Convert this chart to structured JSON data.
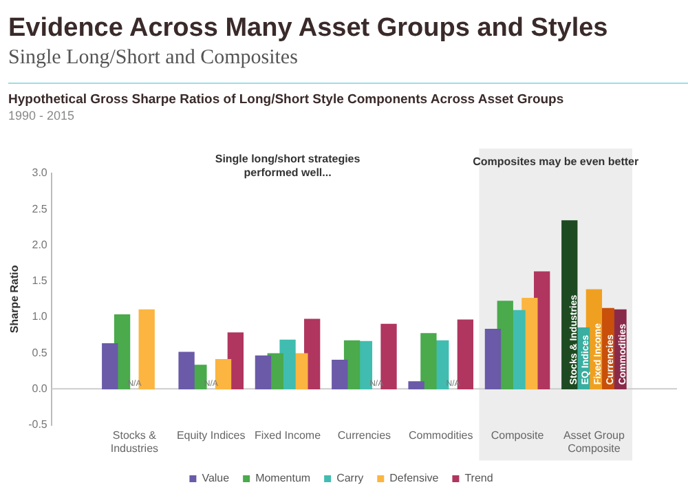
{
  "chart_data": {
    "type": "bar",
    "title": "Evidence Across Many Asset Groups and Styles",
    "subtitle": "Single Long/Short and Composites",
    "ylabel": "Sharpe Ratio",
    "annotations": [
      "Hypothetical Gross Sharpe Ratios of Long/Short Style Components Across Asset Groups",
      "1990 - 2015",
      "Single long/short strategies performed well..."
    ],
    "categories": [
      "Stocks & Industries",
      "Equity Indices",
      "Fixed Income",
      "Currencies",
      "Commodities",
      "Composite",
      "Asset Group Composite"
    ],
    "series": [
      {
        "name": "Value",
        "color": "#6a5aa8",
        "values": [
          0.63,
          0.51,
          0.46,
          0.4,
          0.1,
          0.83,
          null
        ]
      },
      {
        "name": "Momentum",
        "color": "#4aaa4c",
        "values": [
          1.03,
          0.33,
          0.49,
          0.67,
          0.77,
          1.22,
          null
        ]
      },
      {
        "name": "Carry",
        "color": "#40bdb0",
        "values": [
          null,
          null,
          0.68,
          0.66,
          0.67,
          1.09,
          null
        ],
        "value_labels": [
          "N/A",
          "N/A",
          null,
          null,
          null,
          null,
          null
        ]
      },
      {
        "name": "Defensive",
        "color": "#fbb540",
        "values": [
          1.1,
          0.41,
          0.49,
          null,
          null,
          1.26,
          null
        ],
        "value_labels": [
          null,
          null,
          null,
          "N/A",
          "N/A",
          null,
          null
        ]
      },
      {
        "name": "Trend",
        "color": "#b0365f",
        "values": [
          null,
          0.78,
          0.97,
          0.9,
          0.96,
          1.63,
          null
        ]
      },
      {
        "name": "Stocks & Industries",
        "color": "#1e4a22",
        "values": [
          null,
          null,
          null,
          null,
          null,
          null,
          2.34
        ]
      },
      {
        "name": "EQ Indices",
        "color": "#3aaea0",
        "values": [
          null,
          null,
          null,
          null,
          null,
          null,
          0.85
        ]
      },
      {
        "name": "Fixed Income",
        "color": "#f0a020",
        "values": [
          null,
          null,
          null,
          null,
          null,
          null,
          1.38
        ]
      },
      {
        "name": "Currencies",
        "color": "#c8500a",
        "values": [
          null,
          null,
          null,
          null,
          null,
          null,
          1.12
        ]
      },
      {
        "name": "Commodities",
        "color": "#8a2a4a",
        "values": [
          null,
          null,
          null,
          null,
          null,
          null,
          1.1
        ]
      }
    ],
    "ylim": [
      -0.5,
      3
    ],
    "yticks": [
      {
        "value": -0.5,
        "label": "-0.5"
      },
      {
        "value": 0,
        "label": "0.0"
      },
      {
        "value": 0.5,
        "label": "0.5"
      },
      {
        "value": 1,
        "label": "1.0"
      },
      {
        "value": 1.5,
        "label": "1.5"
      },
      {
        "value": 2,
        "label": "2.0"
      },
      {
        "value": 2.5,
        "label": "2.5"
      },
      {
        "value": 3,
        "label": "3.0"
      }
    ],
    "grid": false,
    "legend": "bottom",
    "ref_lines": [
      {
        "axis": "y",
        "value": 0,
        "color": "#cccccc"
      }
    ],
    "bands": [
      {
        "axis": "x",
        "from": "Composite",
        "to": "Asset Group Composite",
        "label": "Composites may be even better",
        "color": "#ededed"
      }
    ]
  }
}
